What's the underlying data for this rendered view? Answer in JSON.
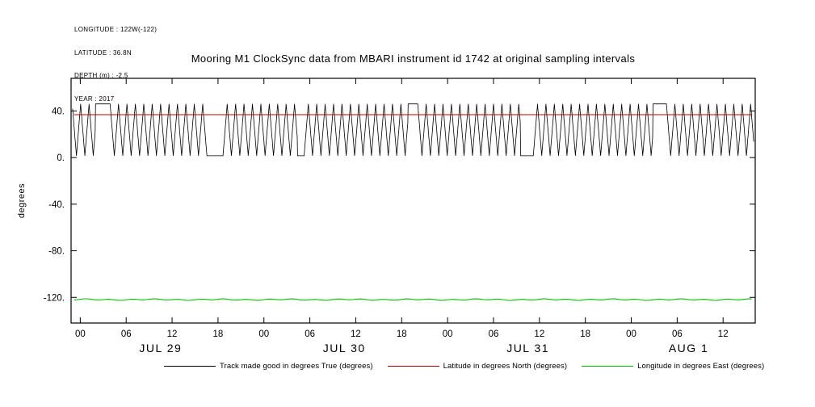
{
  "info": {
    "longitude": "LONGITUDE : 122W(-122)",
    "latitude": "LATITUDE : 36.8N",
    "depth": "DEPTH (m) : -2.5",
    "year": "YEAR : 2017"
  },
  "title": "Mooring M1 ClockSync data from MBARI instrument id 1742 at original sampling intervals",
  "chart_data": {
    "type": "line",
    "title": "Mooring M1 ClockSync data from MBARI instrument id 1742 at original sampling intervals",
    "xlabel": "",
    "ylabel": "degrees",
    "ylim": [
      -142,
      68
    ],
    "x_hours_range": [
      -1.2,
      88.2
    ],
    "x_axis_note": "hours since JUL 29 2017 00:00, ticks every 6 hours",
    "grid": false,
    "legend_position": "bottom",
    "x_ticks": [
      {
        "h": 0,
        "label": "00"
      },
      {
        "h": 6,
        "label": "06"
      },
      {
        "h": 12,
        "label": "12"
      },
      {
        "h": 18,
        "label": "18"
      },
      {
        "h": 24,
        "label": "00"
      },
      {
        "h": 30,
        "label": "06"
      },
      {
        "h": 36,
        "label": "12"
      },
      {
        "h": 42,
        "label": "18"
      },
      {
        "h": 48,
        "label": "00"
      },
      {
        "h": 54,
        "label": "06"
      },
      {
        "h": 60,
        "label": "12"
      },
      {
        "h": 66,
        "label": "18"
      },
      {
        "h": 72,
        "label": "00"
      },
      {
        "h": 78,
        "label": "06"
      },
      {
        "h": 84,
        "label": "12"
      }
    ],
    "day_labels": [
      {
        "h": 10.5,
        "label": "JUL 29"
      },
      {
        "h": 34.5,
        "label": "JUL 30"
      },
      {
        "h": 58.5,
        "label": "JUL 31"
      },
      {
        "h": 79.5,
        "label": "AUG 1"
      }
    ],
    "y_ticks": [
      {
        "v": 40,
        "label": "40."
      },
      {
        "v": 0,
        "label": "0."
      },
      {
        "v": -40,
        "label": "-40."
      },
      {
        "v": -80,
        "label": "-80."
      },
      {
        "v": -120,
        "label": "-120."
      }
    ],
    "series": [
      {
        "name": "Track made good in degrees True (degrees)",
        "color": "#000000",
        "type": "oscillation",
        "low": 1.5,
        "high": 46,
        "period_hours": 1.1,
        "start": -1.0,
        "end": 88.0,
        "plateaus": [
          {
            "from": 2.0,
            "to": 3.9,
            "level": "high"
          },
          {
            "from": 16.6,
            "to": 18.7,
            "level": "low"
          },
          {
            "from": 28.4,
            "to": 29.3,
            "level": "low"
          },
          {
            "from": 42.8,
            "to": 44.1,
            "level": "high"
          },
          {
            "from": 57.5,
            "to": 59.2,
            "level": "low"
          },
          {
            "from": 74.8,
            "to": 76.6,
            "level": "high"
          }
        ]
      },
      {
        "name": "Latitude in degrees North (degrees)",
        "color": "#bb0000",
        "type": "constant",
        "value": 36.8
      },
      {
        "name": "Longitude in degrees East (degrees)",
        "color": "#00c000",
        "type": "constant-wavy",
        "value": -121.9,
        "wiggle_amp": 0.7
      }
    ]
  },
  "legend": {
    "items": [
      {
        "label": "Track made good in degrees True (degrees)",
        "color": "#000000"
      },
      {
        "label": "Latitude in degrees North (degrees)",
        "color": "#bb0000"
      },
      {
        "label": "Longitude in degrees East (degrees)",
        "color": "#00c000"
      }
    ]
  }
}
